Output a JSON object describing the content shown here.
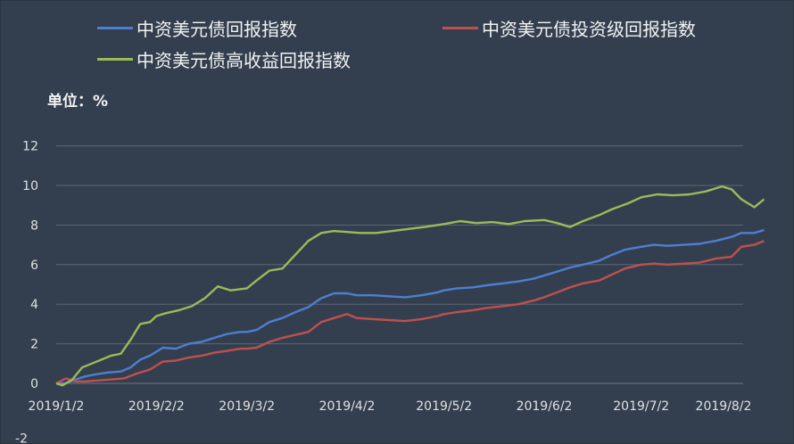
{
  "chart_data": {
    "type": "line",
    "unit_label": "单位：%",
    "legend_placement": "top",
    "grid": true,
    "ylim": [
      -2,
      12
    ],
    "y_ticks": [
      "-2",
      "0",
      "2",
      "4",
      "6",
      "8",
      "10",
      "12"
    ],
    "x_ticks": [
      "2019/1/2",
      "2019/2/2",
      "2019/3/2",
      "2019/4/2",
      "2019/5/2",
      "2019/6/2",
      "2019/7/2",
      "2019/8/2"
    ],
    "x_range": [
      "2019-01-02",
      "2019-08-02"
    ],
    "series": [
      {
        "name": "中资美元债回报指数",
        "color": "#4E7FD0",
        "points": [
          [
            "2019-01-02",
            0.0
          ],
          [
            "2019-01-05",
            0.0
          ],
          [
            "2019-01-08",
            0.2
          ],
          [
            "2019-01-11",
            0.35
          ],
          [
            "2019-01-14",
            0.45
          ],
          [
            "2019-01-18",
            0.55
          ],
          [
            "2019-01-22",
            0.6
          ],
          [
            "2019-01-25",
            0.8
          ],
          [
            "2019-01-28",
            1.2
          ],
          [
            "2019-01-31",
            1.4
          ],
          [
            "2019-02-02",
            1.6
          ],
          [
            "2019-02-04",
            1.8
          ],
          [
            "2019-02-08",
            1.75
          ],
          [
            "2019-02-12",
            2.0
          ],
          [
            "2019-02-16",
            2.1
          ],
          [
            "2019-02-20",
            2.3
          ],
          [
            "2019-02-24",
            2.5
          ],
          [
            "2019-02-28",
            2.6
          ],
          [
            "2019-03-02",
            2.6
          ],
          [
            "2019-03-05",
            2.7
          ],
          [
            "2019-03-09",
            3.1
          ],
          [
            "2019-03-13",
            3.3
          ],
          [
            "2019-03-17",
            3.6
          ],
          [
            "2019-03-21",
            3.85
          ],
          [
            "2019-03-25",
            4.3
          ],
          [
            "2019-03-29",
            4.55
          ],
          [
            "2019-04-02",
            4.55
          ],
          [
            "2019-04-05",
            4.45
          ],
          [
            "2019-04-10",
            4.45
          ],
          [
            "2019-04-15",
            4.4
          ],
          [
            "2019-04-20",
            4.35
          ],
          [
            "2019-04-25",
            4.45
          ],
          [
            "2019-04-30",
            4.6
          ],
          [
            "2019-05-02",
            4.7
          ],
          [
            "2019-05-06",
            4.8
          ],
          [
            "2019-05-11",
            4.85
          ],
          [
            "2019-05-15",
            4.95
          ],
          [
            "2019-05-20",
            5.05
          ],
          [
            "2019-05-25",
            5.15
          ],
          [
            "2019-05-30",
            5.3
          ],
          [
            "2019-06-02",
            5.45
          ],
          [
            "2019-06-06",
            5.65
          ],
          [
            "2019-06-10",
            5.85
          ],
          [
            "2019-06-14",
            6.0
          ],
          [
            "2019-06-19",
            6.2
          ],
          [
            "2019-06-23",
            6.5
          ],
          [
            "2019-06-27",
            6.75
          ],
          [
            "2019-07-02",
            6.9
          ],
          [
            "2019-07-06",
            7.0
          ],
          [
            "2019-07-10",
            6.95
          ],
          [
            "2019-07-15",
            7.0
          ],
          [
            "2019-07-20",
            7.05
          ],
          [
            "2019-07-25",
            7.2
          ],
          [
            "2019-07-30",
            7.4
          ],
          [
            "2019-08-02",
            7.6
          ],
          [
            "2019-08-06",
            7.6
          ],
          [
            "2019-08-09",
            7.75
          ]
        ]
      },
      {
        "name": "中资美元债投资级回报指数",
        "color": "#C0504D",
        "points": [
          [
            "2019-01-02",
            0.0
          ],
          [
            "2019-01-05",
            0.25
          ],
          [
            "2019-01-08",
            0.1
          ],
          [
            "2019-01-11",
            0.1
          ],
          [
            "2019-01-15",
            0.15
          ],
          [
            "2019-01-19",
            0.2
          ],
          [
            "2019-01-23",
            0.25
          ],
          [
            "2019-01-27",
            0.5
          ],
          [
            "2019-01-31",
            0.7
          ],
          [
            "2019-02-02",
            0.9
          ],
          [
            "2019-02-04",
            1.1
          ],
          [
            "2019-02-08",
            1.15
          ],
          [
            "2019-02-12",
            1.3
          ],
          [
            "2019-02-16",
            1.4
          ],
          [
            "2019-02-20",
            1.55
          ],
          [
            "2019-02-24",
            1.65
          ],
          [
            "2019-02-28",
            1.75
          ],
          [
            "2019-03-02",
            1.75
          ],
          [
            "2019-03-05",
            1.8
          ],
          [
            "2019-03-09",
            2.1
          ],
          [
            "2019-03-13",
            2.3
          ],
          [
            "2019-03-17",
            2.45
          ],
          [
            "2019-03-21",
            2.6
          ],
          [
            "2019-03-25",
            3.1
          ],
          [
            "2019-03-29",
            3.3
          ],
          [
            "2019-04-02",
            3.5
          ],
          [
            "2019-04-05",
            3.3
          ],
          [
            "2019-04-10",
            3.25
          ],
          [
            "2019-04-15",
            3.2
          ],
          [
            "2019-04-20",
            3.15
          ],
          [
            "2019-04-25",
            3.25
          ],
          [
            "2019-04-30",
            3.4
          ],
          [
            "2019-05-02",
            3.5
          ],
          [
            "2019-05-06",
            3.6
          ],
          [
            "2019-05-11",
            3.7
          ],
          [
            "2019-05-15",
            3.8
          ],
          [
            "2019-05-20",
            3.9
          ],
          [
            "2019-05-25",
            4.0
          ],
          [
            "2019-05-30",
            4.2
          ],
          [
            "2019-06-02",
            4.35
          ],
          [
            "2019-06-06",
            4.6
          ],
          [
            "2019-06-10",
            4.85
          ],
          [
            "2019-06-14",
            5.05
          ],
          [
            "2019-06-19",
            5.2
          ],
          [
            "2019-06-23",
            5.5
          ],
          [
            "2019-06-27",
            5.8
          ],
          [
            "2019-07-02",
            6.0
          ],
          [
            "2019-07-06",
            6.05
          ],
          [
            "2019-07-10",
            6.0
          ],
          [
            "2019-07-15",
            6.05
          ],
          [
            "2019-07-20",
            6.1
          ],
          [
            "2019-07-25",
            6.3
          ],
          [
            "2019-07-30",
            6.4
          ],
          [
            "2019-08-02",
            6.9
          ],
          [
            "2019-08-06",
            7.0
          ],
          [
            "2019-08-09",
            7.2
          ]
        ]
      },
      {
        "name": "中资美元债高收益回报指数",
        "color": "#9BBB59",
        "points": [
          [
            "2019-01-02",
            0.0
          ],
          [
            "2019-01-04",
            -0.1
          ],
          [
            "2019-01-07",
            0.2
          ],
          [
            "2019-01-10",
            0.8
          ],
          [
            "2019-01-13",
            1.0
          ],
          [
            "2019-01-16",
            1.2
          ],
          [
            "2019-01-19",
            1.4
          ],
          [
            "2019-01-22",
            1.5
          ],
          [
            "2019-01-25",
            2.2
          ],
          [
            "2019-01-28",
            3.0
          ],
          [
            "2019-01-31",
            3.1
          ],
          [
            "2019-02-02",
            3.4
          ],
          [
            "2019-02-05",
            3.55
          ],
          [
            "2019-02-09",
            3.7
          ],
          [
            "2019-02-13",
            3.9
          ],
          [
            "2019-02-17",
            4.3
          ],
          [
            "2019-02-21",
            4.9
          ],
          [
            "2019-02-25",
            4.7
          ],
          [
            "2019-03-02",
            4.8
          ],
          [
            "2019-03-05",
            5.2
          ],
          [
            "2019-03-09",
            5.7
          ],
          [
            "2019-03-13",
            5.8
          ],
          [
            "2019-03-17",
            6.5
          ],
          [
            "2019-03-21",
            7.2
          ],
          [
            "2019-03-25",
            7.6
          ],
          [
            "2019-03-29",
            7.7
          ],
          [
            "2019-04-02",
            7.65
          ],
          [
            "2019-04-06",
            7.6
          ],
          [
            "2019-04-11",
            7.6
          ],
          [
            "2019-04-16",
            7.7
          ],
          [
            "2019-04-21",
            7.8
          ],
          [
            "2019-04-26",
            7.9
          ],
          [
            "2019-05-02",
            8.05
          ],
          [
            "2019-05-07",
            8.2
          ],
          [
            "2019-05-12",
            8.1
          ],
          [
            "2019-05-17",
            8.15
          ],
          [
            "2019-05-22",
            8.05
          ],
          [
            "2019-05-27",
            8.2
          ],
          [
            "2019-06-02",
            8.25
          ],
          [
            "2019-06-06",
            8.1
          ],
          [
            "2019-06-10",
            7.9
          ],
          [
            "2019-06-14",
            8.2
          ],
          [
            "2019-06-19",
            8.5
          ],
          [
            "2019-06-23",
            8.8
          ],
          [
            "2019-06-28",
            9.1
          ],
          [
            "2019-07-02",
            9.4
          ],
          [
            "2019-07-07",
            9.55
          ],
          [
            "2019-07-12",
            9.5
          ],
          [
            "2019-07-17",
            9.55
          ],
          [
            "2019-07-22",
            9.7
          ],
          [
            "2019-07-27",
            9.95
          ],
          [
            "2019-07-30",
            9.8
          ],
          [
            "2019-08-02",
            9.3
          ],
          [
            "2019-08-06",
            8.9
          ],
          [
            "2019-08-09",
            9.3
          ]
        ]
      }
    ]
  }
}
